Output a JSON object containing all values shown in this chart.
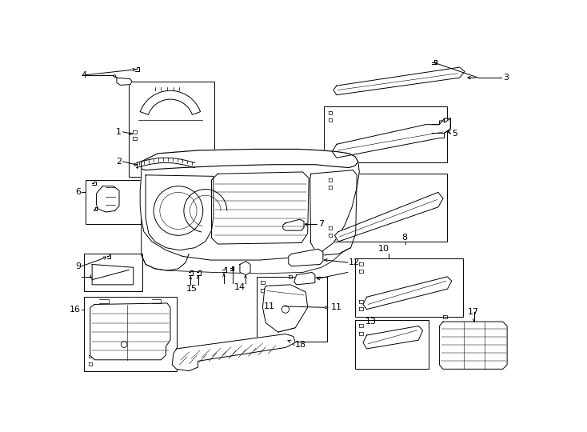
{
  "bg_color": "#ffffff",
  "line_color": "#000000",
  "lw": 0.7,
  "figsize": [
    7.34,
    5.4
  ],
  "dpi": 100,
  "boxes": {
    "b12": [
      87,
      48,
      140,
      155
    ],
    "b6": [
      18,
      208,
      90,
      72
    ],
    "b5": [
      405,
      88,
      200,
      92
    ],
    "b8": [
      405,
      198,
      200,
      110
    ],
    "b9": [
      15,
      328,
      95,
      60
    ],
    "b10": [
      455,
      335,
      175,
      95
    ],
    "b11": [
      295,
      365,
      115,
      105
    ],
    "b16": [
      15,
      398,
      150,
      120
    ],
    "b13": [
      455,
      435,
      120,
      80
    ]
  },
  "labels": {
    "4": [
      10,
      38,
      "4"
    ],
    "1": [
      75,
      130,
      "1"
    ],
    "2": [
      75,
      178,
      "2"
    ],
    "3": [
      695,
      42,
      "3"
    ],
    "5": [
      612,
      132,
      "5"
    ],
    "6": [
      10,
      228,
      "6"
    ],
    "7": [
      395,
      283,
      "7"
    ],
    "8": [
      535,
      302,
      "8"
    ],
    "9": [
      10,
      348,
      "9"
    ],
    "10": [
      490,
      326,
      "10"
    ],
    "11": [
      315,
      415,
      "11"
    ],
    "12": [
      440,
      348,
      "12"
    ],
    "13": [
      470,
      445,
      "13"
    ],
    "14": [
      265,
      382,
      "14"
    ],
    "15": [
      188,
      385,
      "15"
    ],
    "16": [
      10,
      418,
      "16"
    ],
    "17": [
      635,
      420,
      "17"
    ],
    "18": [
      355,
      476,
      "18"
    ]
  }
}
